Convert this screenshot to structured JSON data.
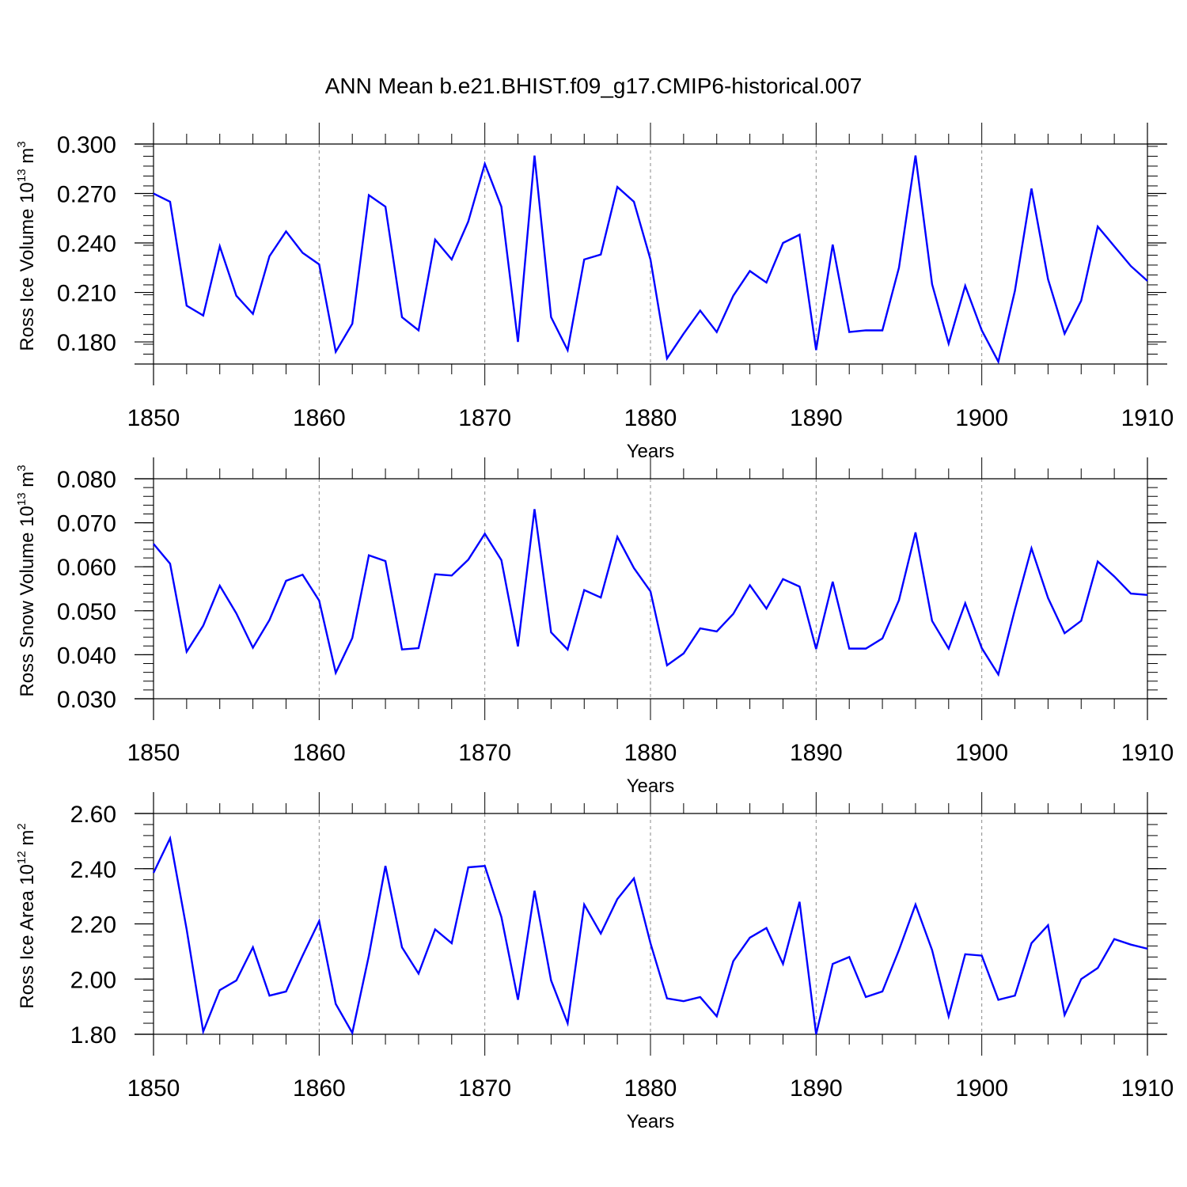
{
  "chart_data": {
    "title": "ANN Mean b.e21.BHIST.f09_g17.CMIP6-historical.007",
    "type": "line",
    "x_start": 1850,
    "x_end": 1910,
    "x_ticks": [
      1850,
      1860,
      1870,
      1880,
      1890,
      1900,
      1910
    ],
    "x_tick_labels": [
      "1850",
      "1860",
      "1870",
      "1880",
      "1890",
      "1900",
      "1910"
    ],
    "line_color": "#0000ff",
    "panels": [
      {
        "name": "ross-ice-volume",
        "ylabel_main": "Ross Ice Volume 10",
        "ylabel_sup": "13",
        "ylabel_unit": " m",
        "ylabel_unit_sup": "3",
        "xlabel": "Years",
        "ylim": [
          0.1666,
          0.3
        ],
        "y_ticks": [
          0.18,
          0.21,
          0.24,
          0.27,
          0.3
        ],
        "y_tick_labels": [
          "0.180",
          "0.210",
          "0.240",
          "0.270",
          "0.300"
        ],
        "y_minor_step": 0.006,
        "values": [
          0.27,
          0.265,
          0.202,
          0.196,
          0.238,
          0.208,
          0.197,
          0.232,
          0.247,
          0.234,
          0.227,
          0.174,
          0.191,
          0.269,
          0.262,
          0.195,
          0.187,
          0.242,
          0.23,
          0.253,
          0.288,
          0.262,
          0.18,
          0.293,
          0.195,
          0.175,
          0.23,
          0.233,
          0.274,
          0.265,
          0.23,
          0.17,
          0.185,
          0.199,
          0.186,
          0.208,
          0.223,
          0.216,
          0.24,
          0.245,
          0.175,
          0.239,
          0.186,
          0.187,
          0.187,
          0.225,
          0.293,
          0.215,
          0.179,
          0.214,
          0.187,
          0.168,
          0.211,
          0.273,
          0.218,
          0.185,
          0.205,
          0.25,
          0.238,
          0.226,
          0.217
        ]
      },
      {
        "name": "ross-snow-volume",
        "ylabel_main": "Ross Snow Volume 10",
        "ylabel_sup": "13",
        "ylabel_unit": " m",
        "ylabel_unit_sup": "3",
        "xlabel": "Years",
        "ylim": [
          0.03,
          0.08
        ],
        "y_ticks": [
          0.03,
          0.04,
          0.05,
          0.06,
          0.07,
          0.08
        ],
        "y_tick_labels": [
          "0.030",
          "0.040",
          "0.050",
          "0.060",
          "0.070",
          "0.080"
        ],
        "y_minor_step": 0.002,
        "values": [
          0.0652,
          0.0607,
          0.0407,
          0.0466,
          0.0557,
          0.0494,
          0.0416,
          0.0479,
          0.0568,
          0.0582,
          0.0523,
          0.0359,
          0.0438,
          0.0626,
          0.0613,
          0.0412,
          0.0415,
          0.0583,
          0.058,
          0.0616,
          0.0675,
          0.0615,
          0.0419,
          0.0731,
          0.0451,
          0.0412,
          0.0547,
          0.053,
          0.0668,
          0.0597,
          0.0544,
          0.0376,
          0.0403,
          0.046,
          0.0453,
          0.0493,
          0.0558,
          0.0505,
          0.0572,
          0.0555,
          0.0413,
          0.0566,
          0.0414,
          0.0414,
          0.0437,
          0.0524,
          0.0678,
          0.0477,
          0.0414,
          0.0517,
          0.0415,
          0.0355,
          0.0503,
          0.0642,
          0.0529,
          0.0449,
          0.0477,
          0.0612,
          0.0578,
          0.0539,
          0.0536
        ]
      },
      {
        "name": "ross-ice-area",
        "ylabel_main": "Ross Ice Area 10",
        "ylabel_sup": "12",
        "ylabel_unit": " m",
        "ylabel_unit_sup": "2",
        "xlabel": "Years",
        "ylim": [
          1.8,
          2.6
        ],
        "y_ticks": [
          1.8,
          2.0,
          2.2,
          2.4,
          2.6
        ],
        "y_tick_labels": [
          "1.80",
          "2.00",
          "2.20",
          "2.40",
          "2.60"
        ],
        "y_minor_step": 0.04,
        "values": [
          2.385,
          2.51,
          2.18,
          1.81,
          1.96,
          1.995,
          2.115,
          1.94,
          1.955,
          2.085,
          2.21,
          1.91,
          1.805,
          2.085,
          2.41,
          2.115,
          2.02,
          2.18,
          2.13,
          2.405,
          2.41,
          2.225,
          1.925,
          2.32,
          1.995,
          1.84,
          2.27,
          2.165,
          2.29,
          2.365,
          2.13,
          1.93,
          1.92,
          1.935,
          1.865,
          2.065,
          2.15,
          2.185,
          2.055,
          2.28,
          1.8,
          2.055,
          2.08,
          1.935,
          1.955,
          2.105,
          2.27,
          2.105,
          1.865,
          2.09,
          2.085,
          1.925,
          1.94,
          2.13,
          2.195,
          1.87,
          2.0,
          2.04,
          2.145,
          2.125,
          2.11
        ]
      }
    ]
  }
}
